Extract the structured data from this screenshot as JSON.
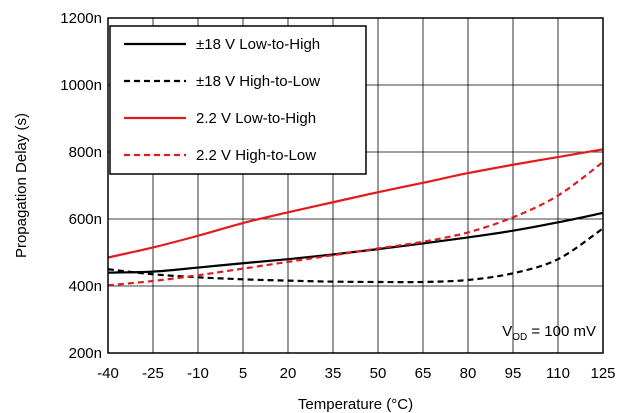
{
  "chart_data": {
    "type": "line",
    "xlabel": "Temperature (°C)",
    "ylabel": "Propagation Delay (s)",
    "x_ticks": [
      "-40",
      "-25",
      "-10",
      "5",
      "20",
      "35",
      "50",
      "65",
      "80",
      "95",
      "110",
      "125"
    ],
    "y_ticks": [
      "200n",
      "400n",
      "600n",
      "800n",
      "1000n",
      "1200n"
    ],
    "xlim": [
      -40,
      125
    ],
    "ylim": [
      200,
      1200
    ],
    "y_unit": "ns",
    "grid": true,
    "legend_position": "top-left",
    "annotation": {
      "main": "V",
      "sub": "OD",
      "rest": " = 100 mV"
    },
    "series": [
      {
        "name": "±18 V Low-to-High",
        "color": "#000000",
        "dash": "solid",
        "x": [
          -40,
          -25,
          -10,
          5,
          20,
          35,
          50,
          65,
          80,
          95,
          110,
          125
        ],
        "y": [
          440,
          443,
          455,
          468,
          480,
          494,
          510,
          527,
          545,
          565,
          590,
          618
        ]
      },
      {
        "name": "±18 V High-to-Low",
        "color": "#000000",
        "dash": "dashed",
        "x": [
          -40,
          -25,
          -10,
          5,
          20,
          35,
          50,
          65,
          80,
          95,
          110,
          125
        ],
        "y": [
          450,
          435,
          426,
          420,
          416,
          413,
          412,
          412,
          418,
          438,
          480,
          572
        ]
      },
      {
        "name": "2.2 V Low-to-High",
        "color": "#e31a1c",
        "dash": "solid",
        "x": [
          -40,
          -25,
          -10,
          5,
          20,
          35,
          50,
          65,
          80,
          95,
          110,
          125
        ],
        "y": [
          485,
          515,
          550,
          588,
          620,
          650,
          680,
          708,
          737,
          762,
          785,
          808
        ]
      },
      {
        "name": "2.2 V High-to-Low",
        "color": "#e31a1c",
        "dash": "dashed",
        "x": [
          -40,
          -25,
          -10,
          5,
          20,
          35,
          50,
          65,
          80,
          95,
          110,
          125
        ],
        "y": [
          402,
          415,
          432,
          452,
          472,
          492,
          512,
          532,
          560,
          605,
          670,
          770
        ]
      }
    ]
  }
}
